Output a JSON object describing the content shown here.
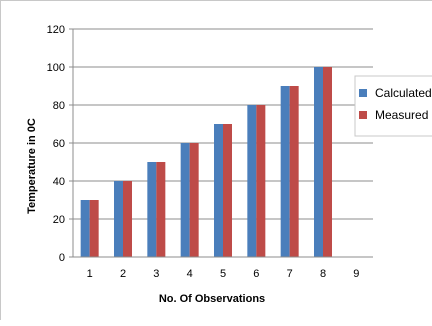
{
  "chart_data": {
    "type": "bar",
    "title": "",
    "xlabel": "No. Of Observations",
    "ylabel": "Temperature in 0C",
    "categories": [
      "1",
      "2",
      "3",
      "4",
      "5",
      "6",
      "7",
      "8",
      "9"
    ],
    "series": [
      {
        "name": "Calculated",
        "values": [
          30,
          40,
          50,
          60,
          70,
          80,
          90,
          100,
          null
        ],
        "color": "#4a7ebb"
      },
      {
        "name": "Measured",
        "values": [
          30,
          40,
          50,
          60,
          70,
          80,
          90,
          100,
          null
        ],
        "color": "#be4b48"
      }
    ],
    "ylim": [
      0,
      120
    ],
    "yticks": [
      "0",
      "20",
      "40",
      "60",
      "80",
      "100",
      "120"
    ],
    "grid": true,
    "legend_position": "right"
  }
}
